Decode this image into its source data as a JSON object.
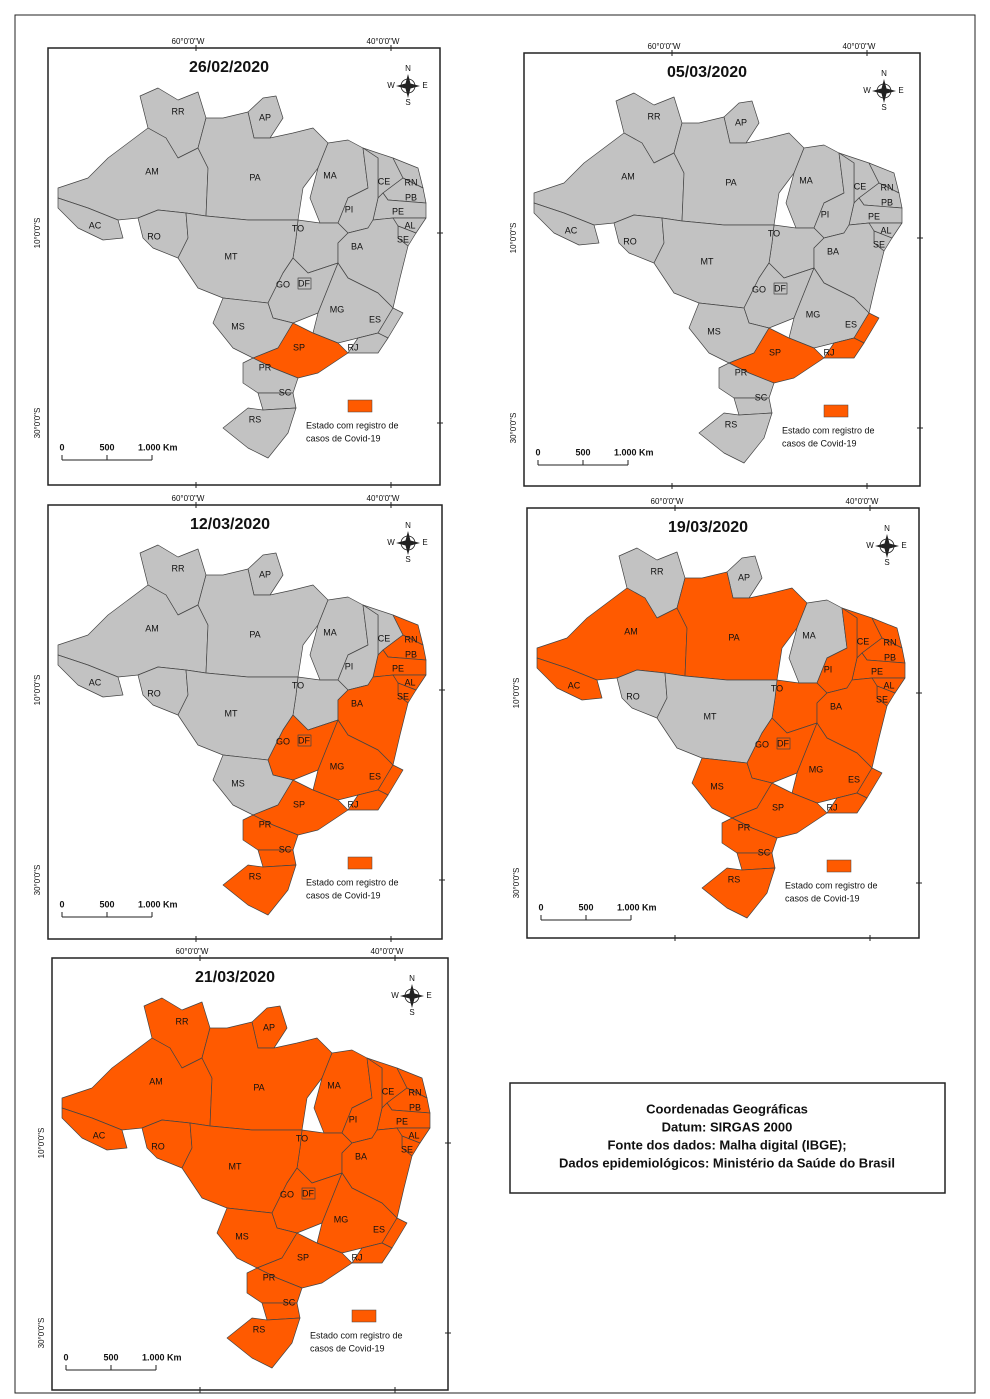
{
  "coordinates": {
    "lon": [
      "60°0'0\"W",
      "40°0'0\"W"
    ],
    "lat": [
      "10°0'0\"S",
      "30°0'0\"S"
    ]
  },
  "compass": {
    "n": "N",
    "e": "E",
    "s": "S",
    "w": "W"
  },
  "states": [
    "RR",
    "AP",
    "AM",
    "PA",
    "MA",
    "CE",
    "RN",
    "PB",
    "PE",
    "AL",
    "SE",
    "PI",
    "AC",
    "RO",
    "TO",
    "BA",
    "MT",
    "GO",
    "DF",
    "MG",
    "ES",
    "MS",
    "SP",
    "RJ",
    "PR",
    "SC",
    "RS"
  ],
  "legend": [
    "Estado com registro de",
    "casos de Covid-19"
  ],
  "scale_bar": [
    "0",
    "500",
    "1.000 Km"
  ],
  "maps": [
    {
      "date": "26/02/2020",
      "cases": [
        "SP"
      ]
    },
    {
      "date": "05/03/2020",
      "cases": [
        "SP",
        "RJ",
        "ES"
      ]
    },
    {
      "date": "12/03/2020",
      "cases": [
        "RN",
        "PB",
        "PE",
        "AL",
        "SE",
        "BA",
        "GO",
        "DF",
        "MG",
        "ES",
        "RJ",
        "SP",
        "PR",
        "SC",
        "RS"
      ]
    },
    {
      "date": "19/03/2020",
      "cases": [
        "AM",
        "AC",
        "PA",
        "TO",
        "PI",
        "CE",
        "RN",
        "PB",
        "PE",
        "AL",
        "SE",
        "BA",
        "GO",
        "DF",
        "MG",
        "ES",
        "RJ",
        "SP",
        "MS",
        "PR",
        "SC",
        "RS"
      ]
    },
    {
      "date": "21/03/2020",
      "cases": [
        "RR",
        "AP",
        "AM",
        "PA",
        "MA",
        "CE",
        "RN",
        "PB",
        "PE",
        "AL",
        "SE",
        "PI",
        "AC",
        "RO",
        "TO",
        "BA",
        "MT",
        "GO",
        "DF",
        "MG",
        "ES",
        "MS",
        "SP",
        "RJ",
        "PR",
        "SC",
        "RS"
      ]
    }
  ],
  "info_box": [
    "Coordenadas Geográficas",
    "Datum: SIRGAS 2000",
    "Fonte dos dados: Malha digital (IBGE);",
    "Dados epidemiológicos: Ministério da Saúde do Brasil"
  ]
}
